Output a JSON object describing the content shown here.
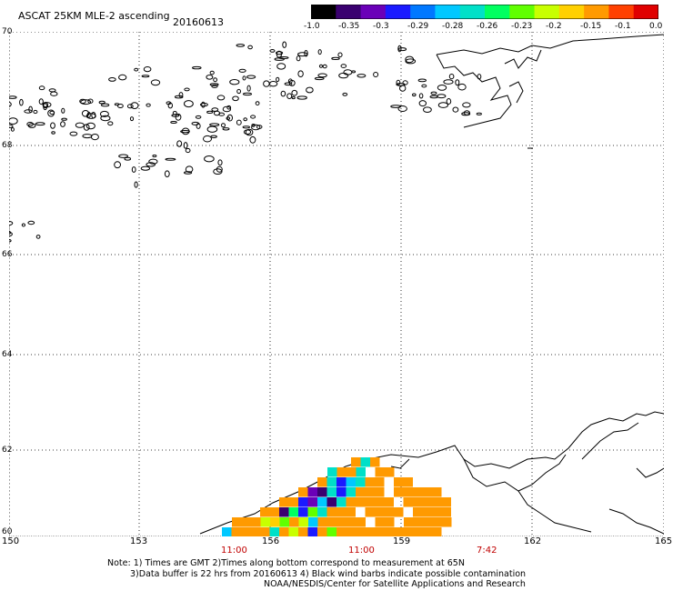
{
  "title": "ASCAT 25KM MLE-2 ascending",
  "date": "20160613",
  "colorbar": {
    "labels": [
      "-1.0",
      "-0.35",
      "-0.3",
      "-0.29",
      "-0.28",
      "-0.26",
      "-0.23",
      "-0.2",
      "-0.15",
      "-0.1",
      "0.0"
    ],
    "colors": [
      "#000000",
      "#3a0070",
      "#6a00b8",
      "#1a1aff",
      "#0078ff",
      "#00c8ff",
      "#00e0c8",
      "#00ff60",
      "#60ff00",
      "#c8ff00",
      "#ffd000",
      "#ff9a00",
      "#ff4000",
      "#e00000"
    ]
  },
  "axes": {
    "lat_labels": [
      "70",
      "68",
      "66",
      "64",
      "62",
      "60"
    ],
    "lon_labels": [
      "150",
      "153",
      "156",
      "159",
      "162",
      "165"
    ],
    "time_labels": [
      "11:00",
      "11:00",
      "7:42"
    ]
  },
  "notes": {
    "line1": "Note: 1) Times are GMT 2)Times along bottom correspond to measurement at 65N",
    "line2": "3)Data buffer is 22 hrs from 20160613 4) Black wind barbs indicate possible contamination",
    "line3": "NOAA/NESDIS/Center for Satellite Applications and Research"
  },
  "colors": {
    "data_main": "#ff9a00",
    "grid": "#000000",
    "coast": "#000000",
    "time_label": "#c00000"
  }
}
